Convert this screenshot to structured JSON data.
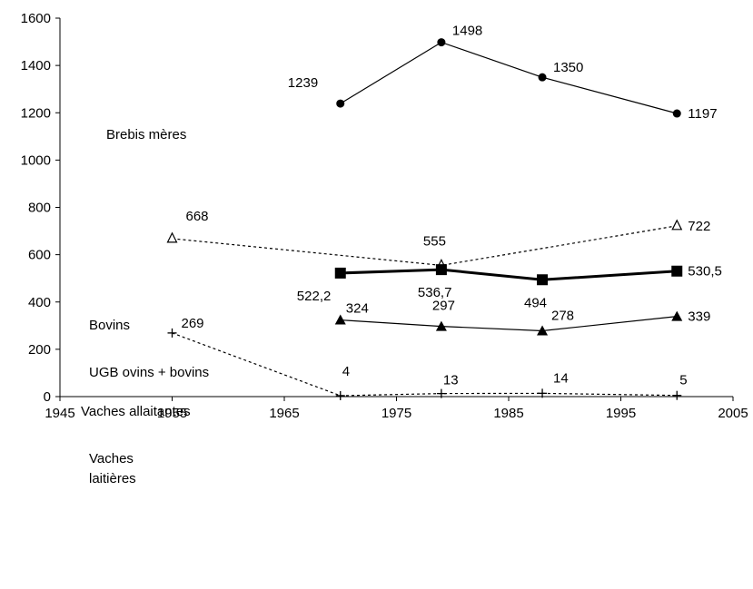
{
  "chart_data": {
    "type": "line",
    "title": "",
    "xlabel": "",
    "ylabel": "",
    "xlim": [
      1945,
      2005
    ],
    "ylim": [
      0,
      1600
    ],
    "x_ticks": [
      "1945",
      "1955",
      "1965",
      "1975",
      "1985",
      "1995",
      "2005"
    ],
    "y_ticks": [
      "0",
      "200",
      "400",
      "600",
      "800",
      "1000",
      "1200",
      "1400",
      "1600"
    ],
    "grid": false,
    "legend": "none",
    "series": [
      {
        "key": "brebis",
        "name": "Brebis mères",
        "style": "solid",
        "marker": "circle",
        "color": "#000000",
        "x": [
          1970,
          1979,
          1988,
          2000
        ],
        "values": [
          1239,
          1498,
          1350,
          1197
        ],
        "labels": [
          "1239",
          "1498",
          "1350",
          "1197"
        ]
      },
      {
        "key": "bovins",
        "name": "Bovins",
        "style": "dotted",
        "marker": "triangle-open",
        "color": "#000000",
        "x": [
          1955,
          1979,
          2000
        ],
        "values": [
          668,
          555,
          722
        ],
        "labels": [
          "668",
          "555",
          "722"
        ]
      },
      {
        "key": "ugb",
        "name": "UGB ovins + bovins",
        "style": "bold",
        "marker": "square",
        "color": "#000000",
        "x": [
          1970,
          1979,
          1988,
          2000
        ],
        "values": [
          522.2,
          536.7,
          494,
          530.5
        ],
        "labels": [
          "522,2",
          "536,7",
          "494",
          "530,5"
        ]
      },
      {
        "key": "allaitantes",
        "name": "Vaches allaitantes",
        "style": "solid",
        "marker": "triangle",
        "color": "#000000",
        "x": [
          1970,
          1979,
          1988,
          2000
        ],
        "values": [
          324,
          297,
          278,
          339
        ],
        "labels": [
          "324",
          "297",
          "278",
          "339"
        ]
      },
      {
        "key": "laitieres",
        "name": "Vaches laitières",
        "name_lines": [
          "Vaches",
          "laitières"
        ],
        "style": "dotted",
        "marker": "plus",
        "color": "#000000",
        "x": [
          1955,
          1970,
          1979,
          1988,
          2000
        ],
        "values": [
          269,
          4,
          13,
          14,
          5
        ],
        "labels": [
          "269",
          "4",
          "13",
          "14",
          "5"
        ]
      }
    ]
  }
}
